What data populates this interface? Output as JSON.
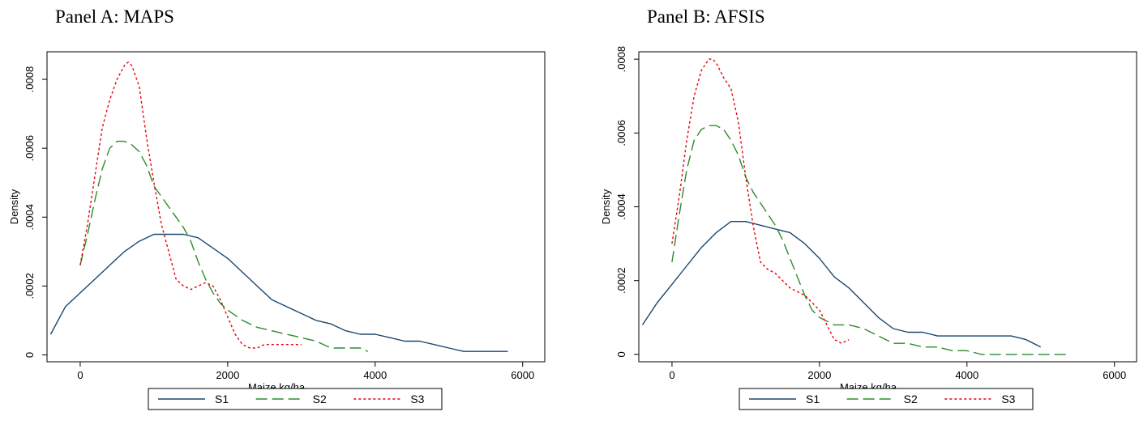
{
  "chart_data": [
    {
      "type": "line",
      "title": "Panel A: MAPS",
      "xlabel": "Maize kg/ha",
      "ylabel": "Density",
      "xlim": [
        -450,
        6300
      ],
      "ylim": [
        -2e-05,
        0.00088
      ],
      "xticks": [
        0,
        2000,
        4000,
        6000
      ],
      "xtick_labels": [
        "0",
        "2000",
        "4000",
        "6000"
      ],
      "yticks": [
        0,
        0.0002,
        0.0004,
        0.0006,
        0.0008
      ],
      "ytick_labels": [
        "0",
        ".0002",
        ".0004",
        ".0006",
        ".0008"
      ],
      "grid": false,
      "legend": "bottom",
      "series": [
        {
          "name": "S1",
          "color": "#1a476f",
          "style": "solid",
          "x": [
            -400,
            -200,
            0,
            200,
            400,
            600,
            800,
            1000,
            1200,
            1400,
            1600,
            1800,
            2000,
            2200,
            2400,
            2600,
            2800,
            3000,
            3200,
            3400,
            3600,
            3800,
            4000,
            4200,
            4400,
            4600,
            4800,
            5000,
            5200,
            5400,
            5600,
            5800
          ],
          "y": [
            6e-05,
            0.00014,
            0.00018,
            0.00022,
            0.00026,
            0.0003,
            0.00033,
            0.00035,
            0.00035,
            0.00035,
            0.00034,
            0.00031,
            0.00028,
            0.00024,
            0.0002,
            0.00016,
            0.00014,
            0.00012,
            0.0001,
            9e-05,
            7e-05,
            6e-05,
            6e-05,
            5e-05,
            4e-05,
            4e-05,
            3e-05,
            2e-05,
            1e-05,
            1e-05,
            1e-05,
            1e-05
          ]
        },
        {
          "name": "S2",
          "color": "#2e8b2e",
          "style": "dashed",
          "x": [
            0,
            100,
            200,
            300,
            400,
            500,
            600,
            700,
            800,
            900,
            1000,
            1100,
            1200,
            1300,
            1400,
            1500,
            1600,
            1700,
            1800,
            1900,
            2000,
            2200,
            2400,
            2600,
            2800,
            3000,
            3200,
            3400,
            3600,
            3800,
            3900
          ],
          "y": [
            0.00026,
            0.00035,
            0.00045,
            0.00054,
            0.0006,
            0.00062,
            0.00062,
            0.00061,
            0.00059,
            0.00055,
            0.00049,
            0.00046,
            0.00043,
            0.0004,
            0.00037,
            0.00033,
            0.00027,
            0.00022,
            0.00018,
            0.00015,
            0.00013,
            0.0001,
            8e-05,
            7e-05,
            6e-05,
            5e-05,
            4e-05,
            2e-05,
            2e-05,
            2e-05,
            1e-05
          ]
        },
        {
          "name": "S3",
          "color": "#e8000b",
          "style": "dotted",
          "x": [
            0,
            100,
            200,
            300,
            400,
            500,
            600,
            650,
            700,
            800,
            900,
            1000,
            1100,
            1200,
            1300,
            1400,
            1500,
            1600,
            1700,
            1800,
            1900,
            2000,
            2100,
            2200,
            2300,
            2400,
            2500,
            2600,
            2800,
            3000
          ],
          "y": [
            0.00026,
            0.00038,
            0.00052,
            0.00066,
            0.00074,
            0.0008,
            0.00084,
            0.00085,
            0.00084,
            0.00078,
            0.00063,
            0.0005,
            0.00038,
            0.0003,
            0.00022,
            0.0002,
            0.00019,
            0.0002,
            0.00021,
            0.0002,
            0.00016,
            0.00011,
            6e-05,
            3e-05,
            2e-05,
            2e-05,
            3e-05,
            3e-05,
            3e-05,
            3e-05
          ]
        }
      ]
    },
    {
      "type": "line",
      "title": "Panel B: AFSIS",
      "xlabel": "Maize kg/ha",
      "ylabel": "Density",
      "xlim": [
        -450,
        6300
      ],
      "ylim": [
        -2e-05,
        0.00082
      ],
      "xticks": [
        0,
        2000,
        4000,
        6000
      ],
      "xtick_labels": [
        "0",
        "2000",
        "4000",
        "6000"
      ],
      "yticks": [
        0,
        0.0002,
        0.0004,
        0.0006,
        0.0008
      ],
      "ytick_labels": [
        "0",
        ".0002",
        ".0004",
        ".0006",
        ".0008"
      ],
      "grid": false,
      "legend": "bottom",
      "series": [
        {
          "name": "S1",
          "color": "#1a476f",
          "style": "solid",
          "x": [
            -400,
            -200,
            0,
            200,
            400,
            600,
            800,
            1000,
            1200,
            1400,
            1600,
            1800,
            2000,
            2200,
            2400,
            2600,
            2800,
            3000,
            3200,
            3400,
            3600,
            3800,
            4000,
            4200,
            4400,
            4600,
            4800,
            5000
          ],
          "y": [
            8e-05,
            0.00014,
            0.00019,
            0.00024,
            0.00029,
            0.00033,
            0.00036,
            0.00036,
            0.00035,
            0.00034,
            0.00033,
            0.0003,
            0.00026,
            0.00021,
            0.00018,
            0.00014,
            0.0001,
            7e-05,
            6e-05,
            6e-05,
            5e-05,
            5e-05,
            5e-05,
            5e-05,
            5e-05,
            5e-05,
            4e-05,
            2e-05
          ]
        },
        {
          "name": "S2",
          "color": "#2e8b2e",
          "style": "dashed",
          "x": [
            0,
            100,
            200,
            300,
            400,
            500,
            600,
            700,
            800,
            900,
            1000,
            1100,
            1200,
            1300,
            1400,
            1500,
            1600,
            1700,
            1800,
            1900,
            2000,
            2200,
            2400,
            2600,
            2800,
            3000,
            3200,
            3400,
            3600,
            3800,
            4000,
            4200,
            4400,
            4600,
            4800,
            5000,
            5200,
            5400
          ],
          "y": [
            0.00025,
            0.00038,
            0.0005,
            0.00058,
            0.00061,
            0.00062,
            0.00062,
            0.00061,
            0.00058,
            0.00054,
            0.00048,
            0.00044,
            0.00041,
            0.00038,
            0.00035,
            0.00031,
            0.00026,
            0.00021,
            0.00016,
            0.00012,
            0.0001,
            8e-05,
            8e-05,
            7e-05,
            5e-05,
            3e-05,
            3e-05,
            2e-05,
            2e-05,
            1e-05,
            1e-05,
            0,
            0,
            0,
            0,
            0,
            0,
            0
          ]
        },
        {
          "name": "S3",
          "color": "#e8000b",
          "style": "dotted",
          "x": [
            0,
            100,
            200,
            300,
            400,
            500,
            550,
            600,
            700,
            800,
            900,
            1000,
            1100,
            1200,
            1300,
            1400,
            1500,
            1600,
            1700,
            1800,
            1900,
            2000,
            2100,
            2200,
            2300,
            2400
          ],
          "y": [
            0.0003,
            0.00043,
            0.00058,
            0.0007,
            0.00077,
            0.0008,
            0.0008,
            0.00079,
            0.00075,
            0.00072,
            0.00063,
            0.00048,
            0.00035,
            0.00025,
            0.00023,
            0.00022,
            0.0002,
            0.00018,
            0.00017,
            0.00016,
            0.00014,
            0.00012,
            8e-05,
            4e-05,
            3e-05,
            4e-05
          ]
        }
      ]
    }
  ]
}
